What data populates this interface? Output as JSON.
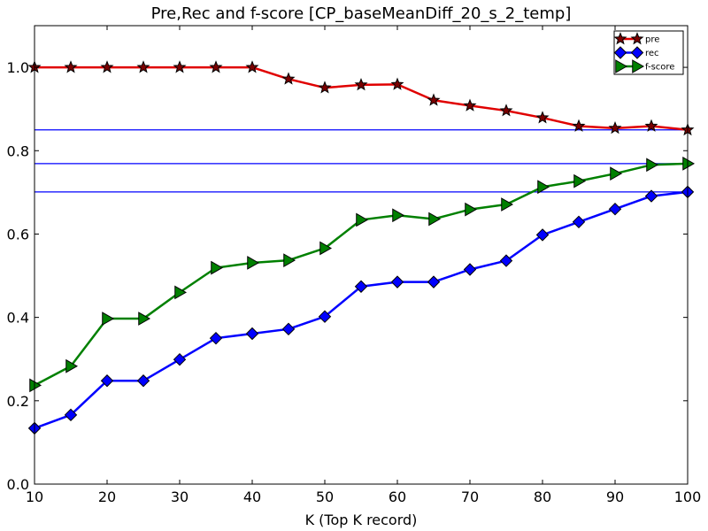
{
  "chart_data": {
    "type": "line",
    "title": "Pre,Rec and f-score [CP_baseMeanDiff_20_s_2_temp]",
    "xlabel": "K (Top K record)",
    "ylabel": "",
    "xlim": [
      10,
      100
    ],
    "ylim": [
      0.0,
      1.1
    ],
    "xticks": [
      "10",
      "20",
      "30",
      "40",
      "50",
      "60",
      "70",
      "80",
      "90",
      "100"
    ],
    "yticks": [
      "0.0",
      "0.2",
      "0.4",
      "0.6",
      "0.8",
      "1.0"
    ],
    "grid": false,
    "legend_position": "top-right",
    "x": [
      10,
      15,
      20,
      25,
      30,
      35,
      40,
      45,
      50,
      55,
      60,
      65,
      70,
      75,
      80,
      85,
      90,
      95,
      100
    ],
    "series": [
      {
        "name": "pre",
        "color": "#e00000",
        "marker": "star",
        "marker_color": "#7a0000",
        "values": [
          1.0,
          1.0,
          1.0,
          1.0,
          1.0,
          1.0,
          1.0,
          0.972,
          0.951,
          0.958,
          0.959,
          0.921,
          0.908,
          0.896,
          0.879,
          0.859,
          0.854,
          0.859,
          0.85
        ]
      },
      {
        "name": "rec",
        "color": "#0000ff",
        "marker": "diamond",
        "marker_color": "#0000ff",
        "values": [
          0.134,
          0.166,
          0.248,
          0.248,
          0.299,
          0.35,
          0.361,
          0.372,
          0.402,
          0.474,
          0.485,
          0.485,
          0.515,
          0.536,
          0.598,
          0.629,
          0.66,
          0.691,
          0.701
        ]
      },
      {
        "name": "f-score",
        "color": "#008000",
        "marker": "triangle-right",
        "marker_color": "#008000",
        "values": [
          0.237,
          0.283,
          0.397,
          0.397,
          0.46,
          0.519,
          0.531,
          0.537,
          0.566,
          0.634,
          0.645,
          0.636,
          0.659,
          0.671,
          0.713,
          0.727,
          0.745,
          0.766,
          0.769
        ]
      }
    ],
    "reference_lines": {
      "color": "#0000ff",
      "y": [
        0.85,
        0.769,
        0.701
      ]
    }
  }
}
